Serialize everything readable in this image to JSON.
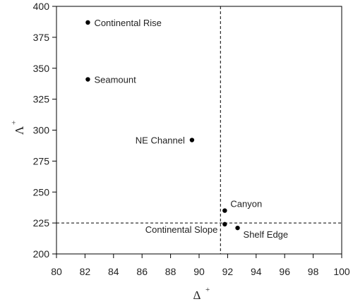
{
  "chart_data": {
    "type": "scatter",
    "xlabel": "Δ",
    "ylabel": "Λ",
    "label_superscript": "+",
    "xlim": [
      80,
      100
    ],
    "ylim": [
      200,
      400
    ],
    "x_ticks": [
      80,
      82,
      84,
      86,
      88,
      90,
      92,
      94,
      96,
      98,
      100
    ],
    "y_ticks": [
      200,
      225,
      250,
      275,
      300,
      325,
      350,
      375,
      400
    ],
    "reference_lines": {
      "vertical_x": 91.5,
      "horizontal_y": 225,
      "style": "dashed"
    },
    "grid": false,
    "points": [
      {
        "label": "Continental Rise",
        "x": 82.2,
        "y": 387
      },
      {
        "label": "Seamount",
        "x": 82.2,
        "y": 341
      },
      {
        "label": "NE Channel",
        "x": 89.5,
        "y": 292
      },
      {
        "label": "Canyon",
        "x": 91.8,
        "y": 235
      },
      {
        "label": "Continental Slope",
        "x": 91.8,
        "y": 224
      },
      {
        "label": "Shelf Edge",
        "x": 92.7,
        "y": 221
      }
    ]
  }
}
